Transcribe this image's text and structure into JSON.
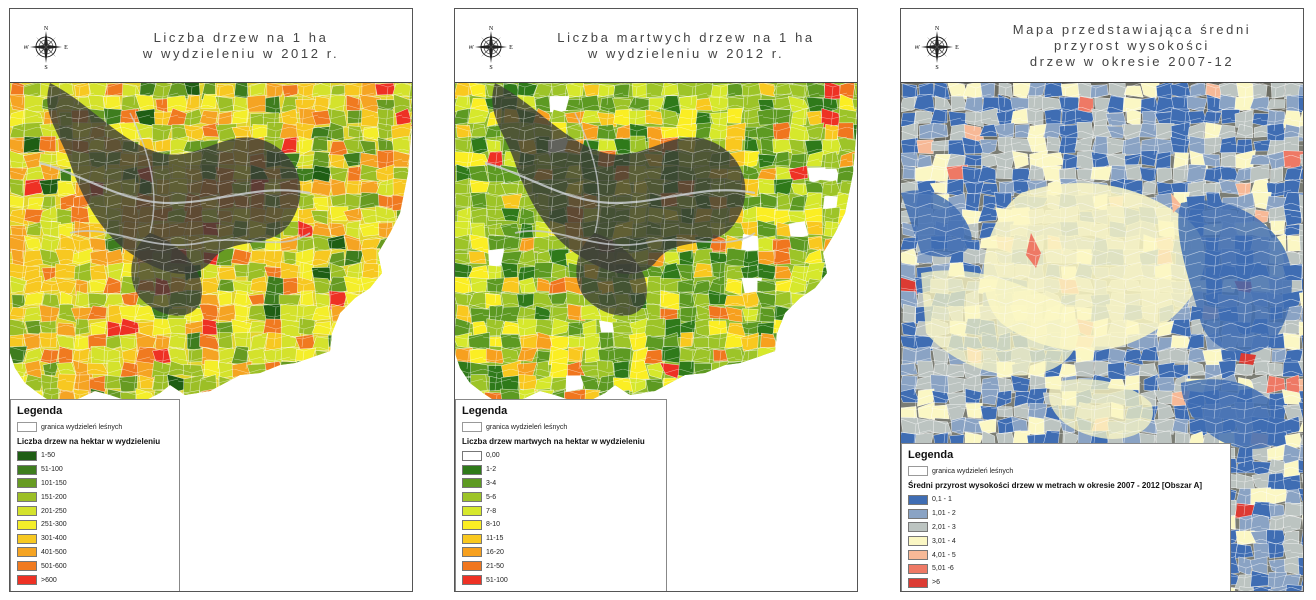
{
  "colors": {
    "satellite_dark": "#3e4038",
    "satellite_mid": "#6b6c62",
    "satellite_light": "#9a9c92",
    "road": "#c8ccd0",
    "boundary": "#ffffff"
  },
  "panels": [
    {
      "title_lines": [
        "Liczba drzew na 1 ha",
        "w wydzieleniu w 2012 r."
      ],
      "compass": {
        "n": "N",
        "e": "E",
        "s": "S",
        "w": "W"
      },
      "legend": {
        "title": "Legenda",
        "boundary_label": "granica wydzieleń leśnych",
        "subtitle": "Liczba drzew na hektar w wydzieleniu",
        "classes": [
          {
            "label": "1-50",
            "color": "#1f5e14"
          },
          {
            "label": "51-100",
            "color": "#3e7d1e"
          },
          {
            "label": "101-150",
            "color": "#679b22"
          },
          {
            "label": "151-200",
            "color": "#9cbf26"
          },
          {
            "label": "201-250",
            "color": "#d4e22c"
          },
          {
            "label": "251-300",
            "color": "#f4ee2a"
          },
          {
            "label": "301-400",
            "color": "#f7c821"
          },
          {
            "label": "401-500",
            "color": "#f5a423"
          },
          {
            "label": "501-600",
            "color": "#f07a20"
          },
          {
            "label": ">600",
            "color": "#ee3124"
          }
        ]
      }
    },
    {
      "title_lines": [
        "Liczba martwych drzew na 1 ha",
        "w wydzieleniu w 2012 r."
      ],
      "compass": {
        "n": "N",
        "e": "E",
        "s": "S",
        "w": "W"
      },
      "legend": {
        "title": "Legenda",
        "boundary_label": "granica wydzieleń leśnych",
        "subtitle": "Liczba drzew martwych na hektar w wydzieleniu",
        "classes": [
          {
            "label": "0,00",
            "color": "#ffffff"
          },
          {
            "label": "1-2",
            "color": "#2f7a1a"
          },
          {
            "label": "3-4",
            "color": "#5d9a22"
          },
          {
            "label": "5-6",
            "color": "#9dc428"
          },
          {
            "label": "7-8",
            "color": "#d6e82c"
          },
          {
            "label": "8-10",
            "color": "#fbee23"
          },
          {
            "label": "11-15",
            "color": "#f9c81f"
          },
          {
            "label": "16-20",
            "color": "#f7a01e"
          },
          {
            "label": "21-50",
            "color": "#f0761e"
          },
          {
            "label": "51-100",
            "color": "#ee3124"
          }
        ]
      }
    },
    {
      "title_lines": [
        "Mapa przedstawiająca średni",
        "przyrost wysokości",
        "drzew w okresie 2007-12"
      ],
      "compass": {
        "n": "N",
        "e": "E",
        "s": "S",
        "w": "W"
      },
      "legend": {
        "title": "Legenda",
        "boundary_label": "granica wydzieleń leśnych",
        "subtitle": "Średni przyrost wysokości drzew w metrach w okresie 2007 - 2012 [Obszar A]",
        "classes": [
          {
            "label": "0,1 - 1",
            "color": "#3f6db3"
          },
          {
            "label": "1,01 - 2",
            "color": "#8aa3c4"
          },
          {
            "label": "2,01 - 3",
            "color": "#bcc4c1"
          },
          {
            "label": "3,01 - 4",
            "color": "#fbf7c4"
          },
          {
            "label": "4,01 - 5",
            "color": "#f7b997"
          },
          {
            "label": "5,01 -6",
            "color": "#ee7965"
          },
          {
            "label": ">6",
            "color": "#dc3b33"
          }
        ]
      }
    }
  ]
}
